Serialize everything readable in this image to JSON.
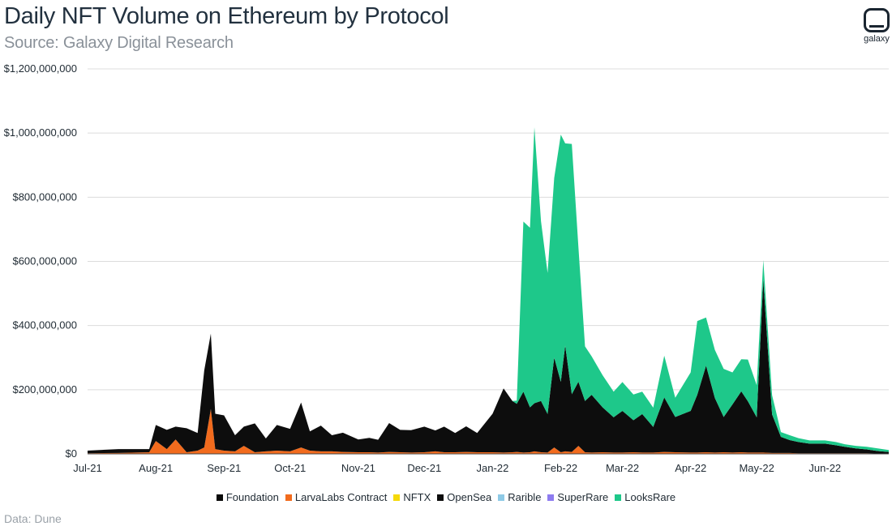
{
  "header": {
    "title": "Daily NFT Volume on Ethereum by Protocol",
    "subtitle": "Source: Galaxy Digital Research",
    "logo_text": "galaxy"
  },
  "footer": {
    "note": "Data: Dune"
  },
  "colors": {
    "Foundation": "#0a0a0a",
    "LarvaLabs Contract": "#f26b1d",
    "NFTX": "#f5d90a",
    "OpenSea": "#0d0d0d",
    "Rarible": "#8ecae6",
    "SuperRare": "#8e7cf0",
    "LooksRare": "#1ec88a",
    "grid": "#dcdcdc"
  },
  "chart_data": {
    "type": "area",
    "stacked": true,
    "xlabel": "",
    "ylabel": "",
    "ylim": [
      0,
      1200000000
    ],
    "y_ticks": [
      "$0",
      "$200,000,000",
      "$400,000,000",
      "$600,000,000",
      "$800,000,000",
      "$1,000,000,000",
      "$1,200,000,000"
    ],
    "x_ticks": [
      "Jul-21",
      "Aug-21",
      "Sep-21",
      "Oct-21",
      "Nov-21",
      "Dec-21",
      "Jan-22",
      "Feb-22",
      "Mar-22",
      "Apr-22",
      "May-22",
      "Jun-22"
    ],
    "grid": "horizontal",
    "legend_position": "bottom",
    "x": [
      "2021-07-01",
      "2021-07-15",
      "2021-07-29",
      "2021-08-01",
      "2021-08-06",
      "2021-08-10",
      "2021-08-15",
      "2021-08-20",
      "2021-08-23",
      "2021-08-26",
      "2021-08-28",
      "2021-09-01",
      "2021-09-06",
      "2021-09-10",
      "2021-09-15",
      "2021-09-20",
      "2021-09-25",
      "2021-10-01",
      "2021-10-06",
      "2021-10-10",
      "2021-10-15",
      "2021-10-20",
      "2021-10-25",
      "2021-11-01",
      "2021-11-06",
      "2021-11-10",
      "2021-11-15",
      "2021-11-20",
      "2021-11-25",
      "2021-12-01",
      "2021-12-06",
      "2021-12-10",
      "2021-12-15",
      "2021-12-20",
      "2021-12-25",
      "2022-01-01",
      "2022-01-06",
      "2022-01-10",
      "2022-01-12",
      "2022-01-15",
      "2022-01-18",
      "2022-01-20",
      "2022-01-23",
      "2022-01-26",
      "2022-01-29",
      "2022-02-01",
      "2022-02-03",
      "2022-02-06",
      "2022-02-09",
      "2022-02-12",
      "2022-02-15",
      "2022-02-20",
      "2022-02-25",
      "2022-03-01",
      "2022-03-06",
      "2022-03-10",
      "2022-03-15",
      "2022-03-20",
      "2022-03-25",
      "2022-04-01",
      "2022-04-04",
      "2022-04-08",
      "2022-04-12",
      "2022-04-16",
      "2022-04-20",
      "2022-04-24",
      "2022-04-27",
      "2022-05-01",
      "2022-05-04",
      "2022-05-08",
      "2022-05-12",
      "2022-05-16",
      "2022-05-20",
      "2022-05-25",
      "2022-06-01",
      "2022-06-06",
      "2022-06-10",
      "2022-06-15",
      "2022-06-20",
      "2022-06-25",
      "2022-06-30"
    ],
    "series": [
      {
        "name": "Foundation",
        "values": [
          0,
          0,
          0,
          0,
          0,
          0,
          0,
          0,
          0,
          0,
          0,
          0,
          0,
          0,
          0,
          0,
          0,
          0,
          0,
          0,
          0,
          0,
          0,
          0,
          0,
          0,
          0,
          0,
          0,
          0,
          0,
          0,
          0,
          0,
          0,
          0,
          0,
          0,
          0,
          0,
          0,
          0,
          0,
          0,
          0,
          0,
          0,
          0,
          0,
          0,
          0,
          0,
          0,
          0,
          0,
          0,
          0,
          0,
          0,
          0,
          0,
          0,
          0,
          0,
          0,
          0,
          0,
          0,
          0,
          0,
          0,
          0,
          0,
          0,
          0,
          0,
          0,
          0,
          0,
          0,
          0
        ]
      },
      {
        "name": "LarvaLabs Contract",
        "values": [
          2000000,
          3000000,
          5000000,
          40000000,
          15000000,
          45000000,
          5000000,
          10000000,
          20000000,
          140000000,
          15000000,
          10000000,
          8000000,
          25000000,
          5000000,
          8000000,
          10000000,
          8000000,
          20000000,
          10000000,
          8000000,
          8000000,
          6000000,
          5000000,
          5000000,
          4000000,
          6000000,
          5000000,
          4000000,
          5000000,
          8000000,
          5000000,
          5000000,
          6000000,
          5000000,
          5000000,
          4000000,
          5000000,
          6000000,
          4000000,
          5000000,
          8000000,
          5000000,
          4000000,
          20000000,
          5000000,
          8000000,
          6000000,
          25000000,
          5000000,
          4000000,
          5000000,
          4000000,
          4000000,
          5000000,
          4000000,
          4000000,
          6000000,
          5000000,
          4000000,
          4000000,
          5000000,
          4000000,
          5000000,
          4000000,
          5000000,
          4000000,
          4000000,
          4000000,
          3000000,
          3000000,
          3000000,
          2000000,
          2000000,
          2000000,
          2000000,
          2000000,
          2000000,
          2000000,
          1000000,
          1000000
        ]
      },
      {
        "name": "NFTX",
        "values": [
          0,
          0,
          0,
          0,
          0,
          0,
          0,
          0,
          0,
          0,
          0,
          0,
          0,
          0,
          0,
          0,
          0,
          0,
          0,
          0,
          0,
          0,
          0,
          0,
          0,
          0,
          0,
          0,
          0,
          0,
          0,
          0,
          0,
          0,
          0,
          0,
          0,
          0,
          0,
          0,
          0,
          0,
          0,
          0,
          0,
          0,
          0,
          0,
          0,
          0,
          0,
          0,
          0,
          0,
          0,
          0,
          0,
          0,
          0,
          0,
          0,
          0,
          0,
          0,
          0,
          0,
          0,
          0,
          0,
          0,
          0,
          0,
          0,
          0,
          0,
          0,
          0,
          0,
          0,
          0,
          0
        ]
      },
      {
        "name": "OpenSea",
        "values": [
          8000000,
          12000000,
          10000000,
          50000000,
          60000000,
          40000000,
          75000000,
          55000000,
          240000000,
          235000000,
          110000000,
          110000000,
          50000000,
          60000000,
          90000000,
          40000000,
          80000000,
          70000000,
          140000000,
          60000000,
          80000000,
          50000000,
          60000000,
          40000000,
          45000000,
          40000000,
          90000000,
          70000000,
          70000000,
          80000000,
          65000000,
          80000000,
          60000000,
          80000000,
          60000000,
          120000000,
          200000000,
          160000000,
          150000000,
          190000000,
          140000000,
          150000000,
          160000000,
          120000000,
          280000000,
          220000000,
          330000000,
          180000000,
          200000000,
          160000000,
          180000000,
          140000000,
          110000000,
          130000000,
          100000000,
          120000000,
          80000000,
          170000000,
          110000000,
          130000000,
          180000000,
          270000000,
          170000000,
          110000000,
          150000000,
          190000000,
          160000000,
          110000000,
          540000000,
          120000000,
          50000000,
          40000000,
          35000000,
          30000000,
          30000000,
          25000000,
          20000000,
          15000000,
          12000000,
          8000000,
          5000000
        ]
      },
      {
        "name": "Rarible",
        "values": [
          0,
          0,
          0,
          0,
          0,
          0,
          0,
          0,
          0,
          0,
          0,
          0,
          0,
          0,
          0,
          0,
          0,
          0,
          0,
          0,
          0,
          0,
          0,
          0,
          0,
          0,
          0,
          0,
          0,
          0,
          0,
          0,
          0,
          0,
          0,
          0,
          0,
          0,
          0,
          0,
          0,
          0,
          0,
          0,
          0,
          0,
          0,
          0,
          0,
          0,
          0,
          0,
          0,
          0,
          0,
          0,
          0,
          0,
          0,
          0,
          0,
          0,
          0,
          0,
          0,
          0,
          0,
          0,
          0,
          0,
          0,
          0,
          0,
          0,
          0,
          0,
          0,
          0,
          0,
          0,
          0
        ]
      },
      {
        "name": "SuperRare",
        "values": [
          0,
          0,
          0,
          0,
          0,
          0,
          0,
          0,
          0,
          0,
          0,
          0,
          0,
          0,
          0,
          0,
          0,
          0,
          0,
          0,
          0,
          0,
          0,
          0,
          0,
          0,
          0,
          0,
          0,
          0,
          0,
          0,
          0,
          0,
          0,
          0,
          0,
          0,
          0,
          0,
          0,
          0,
          0,
          0,
          0,
          0,
          0,
          0,
          0,
          0,
          0,
          0,
          0,
          0,
          0,
          0,
          0,
          0,
          0,
          0,
          0,
          0,
          0,
          0,
          0,
          0,
          0,
          0,
          0,
          0,
          0,
          0,
          0,
          0,
          0,
          0,
          0,
          0,
          0,
          0,
          0
        ]
      },
      {
        "name": "LooksRare",
        "values": [
          0,
          0,
          0,
          0,
          0,
          0,
          0,
          0,
          0,
          0,
          0,
          0,
          0,
          0,
          0,
          0,
          0,
          0,
          0,
          0,
          0,
          0,
          0,
          0,
          0,
          0,
          0,
          0,
          0,
          0,
          0,
          0,
          0,
          0,
          0,
          0,
          0,
          0,
          10000000,
          530000000,
          560000000,
          860000000,
          560000000,
          440000000,
          560000000,
          770000000,
          630000000,
          780000000,
          420000000,
          170000000,
          120000000,
          100000000,
          80000000,
          90000000,
          80000000,
          70000000,
          60000000,
          130000000,
          60000000,
          120000000,
          230000000,
          150000000,
          150000000,
          150000000,
          100000000,
          100000000,
          130000000,
          100000000,
          60000000,
          60000000,
          15000000,
          15000000,
          12000000,
          10000000,
          10000000,
          10000000,
          8000000,
          8000000,
          8000000,
          8000000,
          6000000
        ]
      }
    ]
  }
}
